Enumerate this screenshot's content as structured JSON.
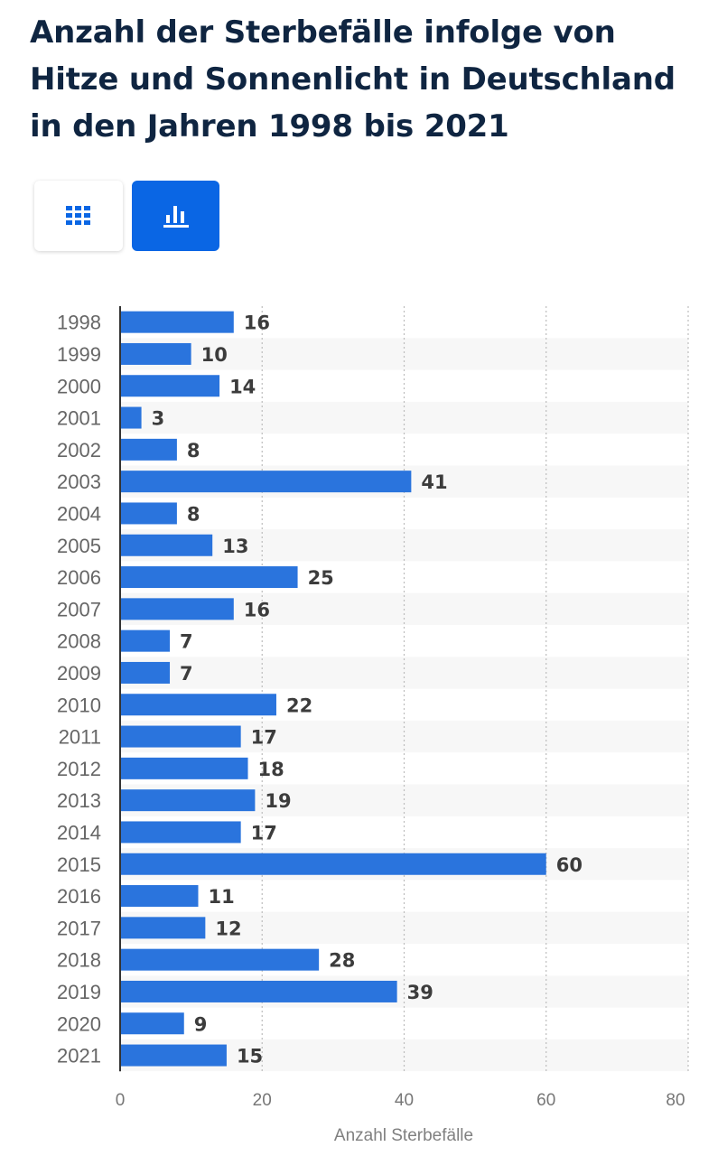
{
  "title": "Anzahl der Sterbefälle infolge von Hitze und Sonnenlicht in Deutschland in den Jahren 1998 bis 2021",
  "view_toggle": {
    "table_icon": "grid-table-icon",
    "chart_icon": "bar-chart-icon",
    "active": "chart"
  },
  "colors": {
    "bar": "#2a74dd",
    "active_button": "#0a66e4",
    "title": "#0f2541",
    "label": "#3c3c3c",
    "tick": "#666666",
    "stripe": "#f7f7f7"
  },
  "chart_data": {
    "type": "bar",
    "orientation": "horizontal",
    "categories": [
      "1998",
      "1999",
      "2000",
      "2001",
      "2002",
      "2003",
      "2004",
      "2005",
      "2006",
      "2007",
      "2008",
      "2009",
      "2010",
      "2011",
      "2012",
      "2013",
      "2014",
      "2015",
      "2016",
      "2017",
      "2018",
      "2019",
      "2020",
      "2021"
    ],
    "values": [
      16,
      10,
      14,
      3,
      8,
      41,
      8,
      13,
      25,
      16,
      7,
      7,
      22,
      17,
      18,
      19,
      17,
      60,
      11,
      12,
      28,
      39,
      9,
      15
    ],
    "xlabel": "Anzahl Sterbefälle",
    "xlim": [
      0,
      80
    ],
    "xticks": [
      "0",
      "20",
      "40",
      "60",
      "80"
    ],
    "grid": true,
    "data_labels": true
  }
}
